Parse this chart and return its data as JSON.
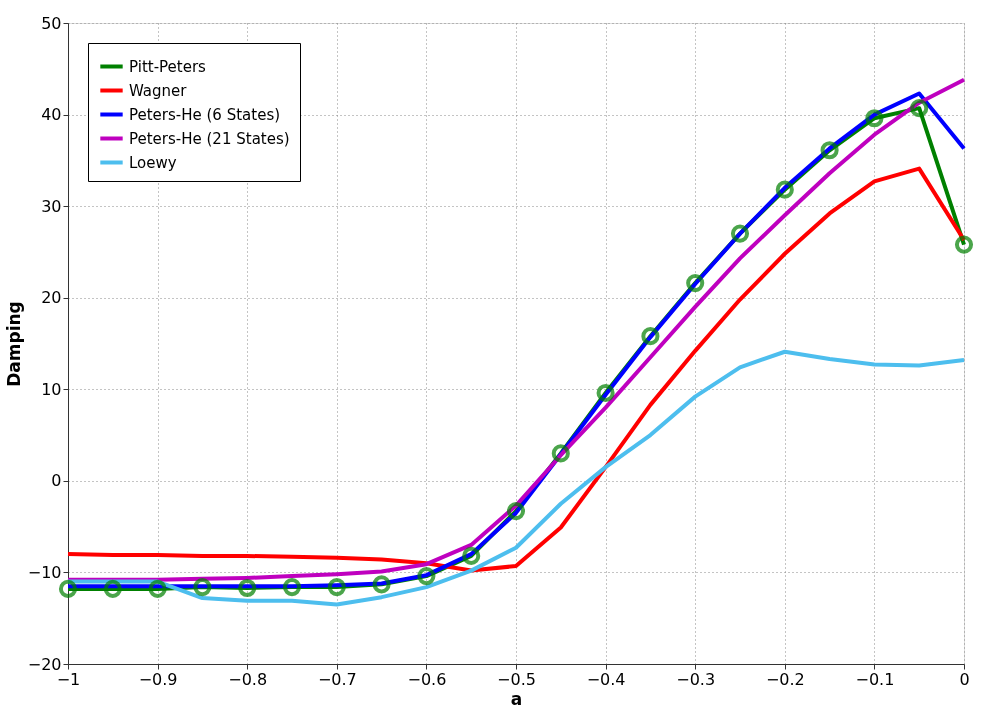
{
  "chart_data": {
    "type": "line",
    "xlabel": "a",
    "ylabel": "Damping",
    "x": [
      -1,
      -0.95,
      -0.9,
      -0.85,
      -0.8,
      -0.75,
      -0.7,
      -0.65,
      -0.6,
      -0.55,
      -0.5,
      -0.45,
      -0.4,
      -0.35,
      -0.3,
      -0.25,
      -0.2,
      -0.15,
      -0.1,
      -0.05,
      0
    ],
    "xlim": [
      -1,
      0
    ],
    "xticks": [
      -1,
      -0.9,
      -0.8,
      -0.7,
      -0.6,
      -0.5,
      -0.4,
      -0.3,
      -0.2,
      -0.1,
      0
    ],
    "ylim": [
      -20,
      50
    ],
    "yticks": [
      -20,
      -10,
      0,
      10,
      20,
      30,
      40,
      50
    ],
    "grid": true,
    "legend": "top left",
    "line_style": "solid",
    "series": [
      {
        "name": "Pitt-Peters",
        "color": "#008000",
        "marker": "circle",
        "values": [
          -11.8,
          -11.8,
          -11.8,
          -11.6,
          -11.7,
          -11.6,
          -11.6,
          -11.3,
          -10.4,
          -8.2,
          -3.3,
          3.0,
          9.6,
          15.8,
          21.6,
          27.0,
          31.8,
          36.1,
          39.6,
          40.7,
          25.8
        ]
      },
      {
        "name": "Wagner",
        "color": "#ff0000",
        "marker": "none",
        "values": [
          -8.0,
          -8.1,
          -8.1,
          -8.2,
          -8.2,
          -8.3,
          -8.4,
          -8.6,
          -9.0,
          -9.8,
          -9.3,
          -5.1,
          1.5,
          8.3,
          14.2,
          19.8,
          24.8,
          29.2,
          32.7,
          34.1,
          26.3
        ]
      },
      {
        "name": "Peters-He (6 States)",
        "color": "#0000ff",
        "marker": "none",
        "values": [
          -11.5,
          -11.5,
          -11.5,
          -11.5,
          -11.5,
          -11.5,
          -11.4,
          -11.2,
          -10.3,
          -8.0,
          -3.5,
          2.9,
          9.4,
          15.7,
          21.5,
          27.0,
          32.0,
          36.3,
          40.0,
          42.3,
          36.3
        ]
      },
      {
        "name": "Peters-He (21 States)",
        "color": "#bf00bf",
        "marker": "none",
        "values": [
          -10.8,
          -10.8,
          -10.8,
          -10.7,
          -10.6,
          -10.4,
          -10.2,
          -9.9,
          -9.1,
          -7.0,
          -2.7,
          2.8,
          8.0,
          13.5,
          19.0,
          24.3,
          29.0,
          33.6,
          37.8,
          41.3,
          43.8
        ]
      },
      {
        "name": "Loewy",
        "color": "#4dbeee",
        "marker": "none",
        "values": [
          -11.0,
          -11.0,
          -11.0,
          -12.8,
          -13.1,
          -13.1,
          -13.5,
          -12.7,
          -11.6,
          -9.8,
          -7.3,
          -2.5,
          1.5,
          5.0,
          9.2,
          12.4,
          14.1,
          13.3,
          12.7,
          12.6,
          13.2
        ]
      }
    ]
  }
}
